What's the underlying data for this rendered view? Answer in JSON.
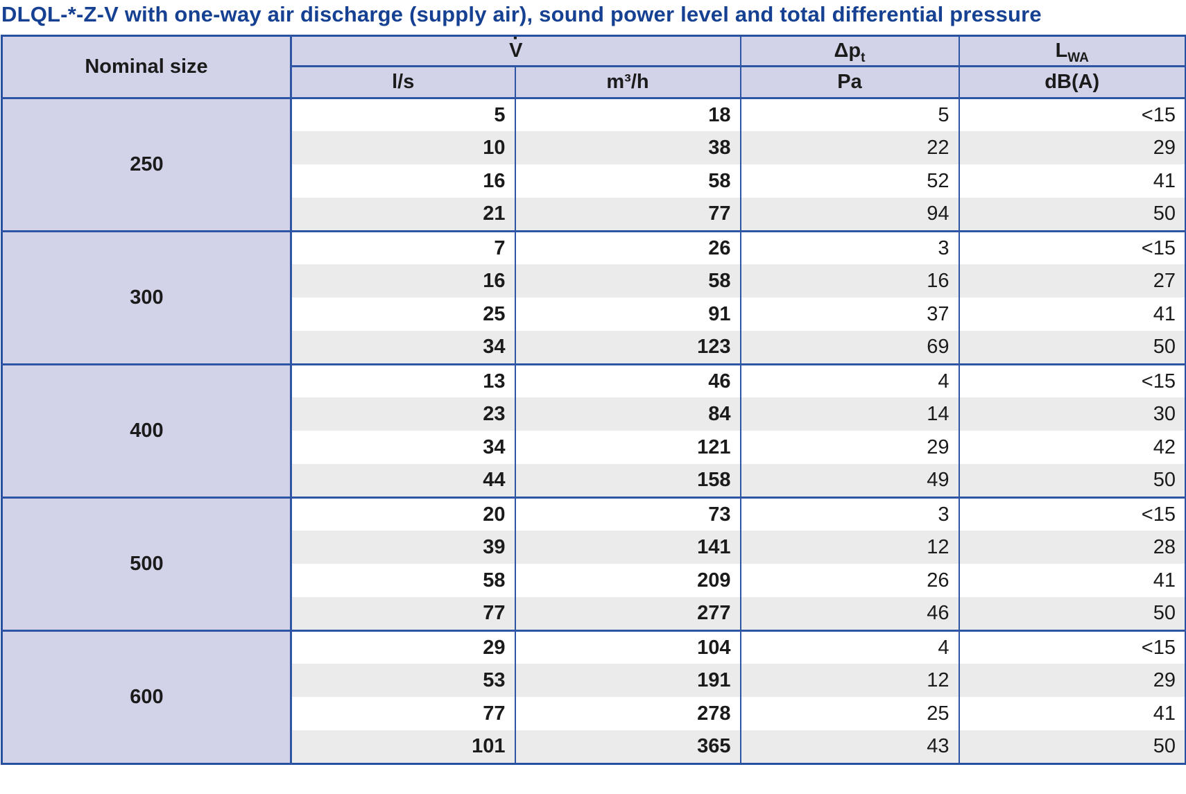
{
  "title": "DLQL-*-Z-V with one-way air discharge (supply air), sound power level and total differential pressure",
  "colors": {
    "title_blue": "#164193",
    "border_blue": "#2750a1",
    "header_bg": "#d2d2e8",
    "stripe_bg": "#ebebeb",
    "text": "#1b1b1b"
  },
  "table": {
    "header": {
      "nominal_size": "Nominal size",
      "flow": {
        "base": "V",
        "dot": "·"
      },
      "dp": {
        "base": "Δp",
        "sub": "t"
      },
      "lwa": {
        "base": "L",
        "sub": "WA"
      },
      "units": [
        "l/s",
        "m³/h",
        "Pa",
        "dB(A)"
      ]
    },
    "groups": [
      {
        "size": "250",
        "rows": [
          [
            "5",
            "18",
            "5",
            "<15"
          ],
          [
            "10",
            "38",
            "22",
            "29"
          ],
          [
            "16",
            "58",
            "52",
            "41"
          ],
          [
            "21",
            "77",
            "94",
            "50"
          ]
        ]
      },
      {
        "size": "300",
        "rows": [
          [
            "7",
            "26",
            "3",
            "<15"
          ],
          [
            "16",
            "58",
            "16",
            "27"
          ],
          [
            "25",
            "91",
            "37",
            "41"
          ],
          [
            "34",
            "123",
            "69",
            "50"
          ]
        ]
      },
      {
        "size": "400",
        "rows": [
          [
            "13",
            "46",
            "4",
            "<15"
          ],
          [
            "23",
            "84",
            "14",
            "30"
          ],
          [
            "34",
            "121",
            "29",
            "42"
          ],
          [
            "44",
            "158",
            "49",
            "50"
          ]
        ]
      },
      {
        "size": "500",
        "rows": [
          [
            "20",
            "73",
            "3",
            "<15"
          ],
          [
            "39",
            "141",
            "12",
            "28"
          ],
          [
            "58",
            "209",
            "26",
            "41"
          ],
          [
            "77",
            "277",
            "46",
            "50"
          ]
        ]
      },
      {
        "size": "600",
        "rows": [
          [
            "29",
            "104",
            "4",
            "<15"
          ],
          [
            "53",
            "191",
            "12",
            "29"
          ],
          [
            "77",
            "278",
            "25",
            "41"
          ],
          [
            "101",
            "365",
            "43",
            "50"
          ]
        ]
      }
    ]
  }
}
